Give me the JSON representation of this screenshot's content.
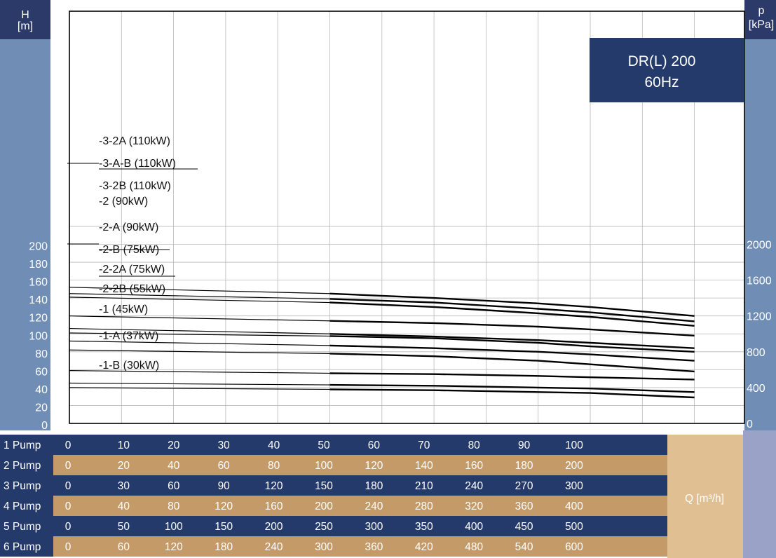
{
  "chart_data": {
    "type": "line",
    "title": "DR(L) 200",
    "subtitle": "60Hz",
    "ylabel": {
      "symbol": "H",
      "unit": "[m]"
    },
    "y2label": {
      "symbol": "p",
      "unit": "[kPa]"
    },
    "ylim": [
      0,
      220
    ],
    "yticks": [
      0,
      20,
      40,
      60,
      80,
      100,
      120,
      140,
      160,
      180,
      200
    ],
    "y2ticks": [
      0,
      400,
      800,
      1200,
      1600,
      2000
    ],
    "y2_per_y": 10,
    "xlabel": "Q [m³/h]",
    "xlim": [
      0,
      120
    ],
    "x_unit_basis": "1 Pump",
    "pump_rows": [
      {
        "label": "1 Pump",
        "values": [
          "0",
          "10",
          "20",
          "30",
          "40",
          "50",
          "60",
          "70",
          "80",
          "90",
          "100"
        ]
      },
      {
        "label": "2 Pump",
        "values": [
          "0",
          "20",
          "40",
          "60",
          "80",
          "100",
          "120",
          "140",
          "160",
          "180",
          "200"
        ]
      },
      {
        "label": "3 Pump",
        "values": [
          "0",
          "30",
          "60",
          "90",
          "120",
          "150",
          "180",
          "210",
          "240",
          "270",
          "300"
        ]
      },
      {
        "label": "4 Pump",
        "values": [
          "0",
          "40",
          "80",
          "120",
          "160",
          "200",
          "240",
          "280",
          "320",
          "360",
          "400"
        ]
      },
      {
        "label": "5 Pump",
        "values": [
          "0",
          "50",
          "100",
          "150",
          "200",
          "250",
          "300",
          "350",
          "400",
          "450",
          "500"
        ]
      },
      {
        "label": "6 Pump",
        "values": [
          "0",
          "60",
          "120",
          "180",
          "240",
          "300",
          "360",
          "420",
          "480",
          "540",
          "600"
        ]
      }
    ],
    "series": [
      {
        "name": "-3-2A (110kW)",
        "x": [
          0,
          50,
          70,
          90,
          100,
          120
        ],
        "y": [
          152,
          145,
          140,
          134,
          130,
          120
        ]
      },
      {
        "name": "-3-A-B (110kW)",
        "x": [
          0,
          50,
          70,
          90,
          100,
          120
        ],
        "y": [
          145,
          139,
          135,
          128,
          124,
          114
        ]
      },
      {
        "name": "-3-2B (110kW)",
        "x": [
          0,
          50,
          70,
          90,
          100,
          120
        ],
        "y": [
          141,
          135,
          130,
          123,
          119,
          109
        ]
      },
      {
        "name": "-2 (90kW)",
        "x": [
          0,
          50,
          70,
          90,
          100,
          120
        ],
        "y": [
          120,
          114.5,
          112,
          108,
          105,
          98
        ]
      },
      {
        "name": "-2-A (90kW)",
        "x": [
          0,
          50,
          70,
          90,
          100,
          120
        ],
        "y": [
          106,
          100,
          97,
          93,
          90,
          84
        ]
      },
      {
        "name": "-2-B (75kW)",
        "x": [
          0,
          50,
          70,
          90,
          100,
          120
        ],
        "y": [
          101,
          97.5,
          95,
          90,
          86,
          80
        ]
      },
      {
        "name": "-2-2A (75kW)",
        "x": [
          0,
          50,
          70,
          90,
          100,
          120
        ],
        "y": [
          92,
          87,
          84,
          80,
          77,
          70
        ]
      },
      {
        "name": "-2-2B (55kW)",
        "x": [
          0,
          50,
          70,
          90,
          100,
          120
        ],
        "y": [
          82,
          78,
          75,
          70,
          66,
          58
        ]
      },
      {
        "name": "-1 (45kW)",
        "x": [
          0,
          50,
          70,
          90,
          100,
          120
        ],
        "y": [
          59,
          56,
          55,
          53,
          51.5,
          49
        ]
      },
      {
        "name": "-1-A (37kW)",
        "x": [
          0,
          50,
          70,
          90,
          100,
          120
        ],
        "y": [
          45,
          43,
          42,
          40,
          39,
          35
        ]
      },
      {
        "name": "-1-B (30kW)",
        "x": [
          0,
          50,
          70,
          90,
          100,
          120
        ],
        "y": [
          40,
          38,
          37,
          35,
          34,
          29
        ]
      }
    ],
    "grid": true,
    "colors": {
      "axis_band": "#6f8db5",
      "axis_header": "#2b3a68",
      "title_box": "#243a6b",
      "row_dark": "#243a6b",
      "row_tan": "#c49a68",
      "q_box": "#e0bf93",
      "side_panel": "#9aa3c7",
      "curve": "#000000",
      "grid": "#b8b8b8"
    }
  }
}
